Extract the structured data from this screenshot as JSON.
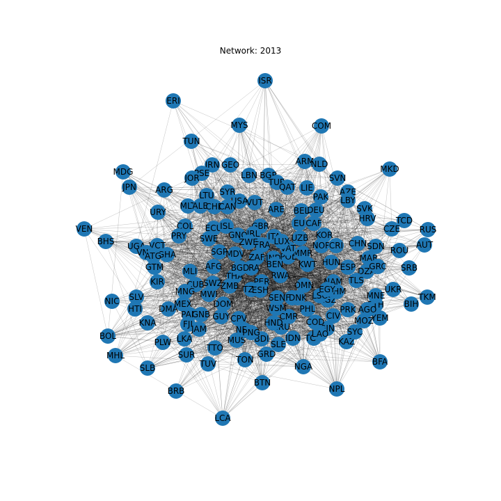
{
  "title": "Network: 2013",
  "colors": {
    "node": "#1f77b4",
    "edge": "#000000",
    "label": "#000000",
    "background": "#ffffff"
  },
  "nodes": [
    "ISR",
    "ERI",
    "MYS",
    "COM",
    "TUN",
    "MKD",
    "MDG",
    "JPN",
    "IRN",
    "GEO",
    "ARM",
    "NLD",
    "LBN",
    "BGR",
    "PSE",
    "JOR",
    "ARG",
    "TUR",
    "QAT",
    "LIE",
    "SVN",
    "AZE",
    "LBY",
    "PAK",
    "LTU",
    "SYR",
    "URY",
    "MLT",
    "ALB",
    "CHE",
    "USA",
    "VUT",
    "ARE",
    "BEL",
    "DEU",
    "SVK",
    "HRV",
    "TCD",
    "RUS",
    "VEN",
    "BHS",
    "CZE",
    "COL",
    "ECU",
    "UZB",
    "EU",
    "CAF",
    "SWE",
    "PRY",
    "ISL",
    "GBR",
    "ITA",
    "KOR",
    "CHN",
    "SDN",
    "AUT",
    "VCT",
    "UGA",
    "GHA",
    "VNM",
    "ATG",
    "GTM",
    "MLI",
    "KIR",
    "NIC",
    "SLV",
    "HTI",
    "DMA",
    "MEX",
    "CUB",
    "MNG",
    "MWI",
    "PAN",
    "GNB",
    "FJI",
    "JAM",
    "KNA",
    "LKA",
    "PLW",
    "BOL",
    "MHL",
    "SUR",
    "SLB",
    "BRB",
    "TUV",
    "TTO",
    "LCA",
    "MUS",
    "TON",
    "GRD",
    "BTN",
    "SLE",
    "IDN",
    "NGA",
    "NPL",
    "BFA",
    "KAZ",
    "SYC",
    "YEM",
    "MOZ",
    "ETH",
    "AGO",
    "MNE",
    "UKR",
    "BIH",
    "TKM",
    "SRB",
    "ROU",
    "MAR",
    "DZA",
    "GRC",
    "ESP",
    "TLS",
    "IRQ",
    "KGZ",
    "CIV",
    "PRK",
    "GIN",
    "TGO",
    "LAO",
    "THA",
    "CMR",
    "COD",
    "NRU",
    "HND",
    "WSM",
    "GUY",
    "DOM",
    "CPV",
    "SEN",
    "BDI",
    "NER",
    "PNG",
    "ZAF",
    "BRA",
    "POL",
    "IND",
    "PHL",
    "PER",
    "AFG",
    "CAN",
    "NOR",
    "FIN",
    "DNK",
    "OMN",
    "KWT",
    "MMR",
    "VAT",
    "LUX",
    "IRL",
    "FRA",
    "GNQ",
    "SGP",
    "MDV",
    "BEN",
    "BGD",
    "HUN",
    "KHM",
    "NAM",
    "CRI",
    "LSO",
    "SWZ",
    "ZMB",
    "ZWE",
    "EGY",
    "RWA",
    "TZA",
    "ESH"
  ]
}
